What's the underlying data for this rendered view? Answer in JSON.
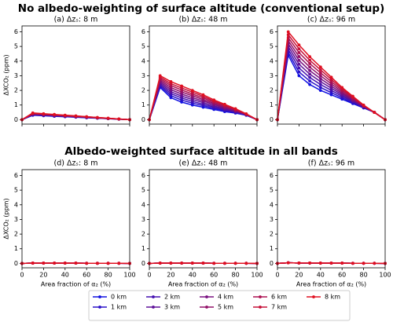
{
  "figure_titles": [
    "No albedo-weighting of surface altitude (conventional setup)",
    "Albedo-weighted surface altitude in all bands"
  ],
  "chart_data": [
    {
      "type": "line",
      "title": "(a) Δzₛ: 8 m",
      "ylabel": "ΔXCO₂ (ppm)",
      "x": [
        0,
        10,
        20,
        30,
        40,
        50,
        60,
        70,
        80,
        90,
        100
      ],
      "xlim": [
        0,
        100
      ],
      "xticks": [
        0,
        20,
        40,
        60,
        80,
        100
      ],
      "ylim": [
        -0.3,
        6.4
      ],
      "yticks": [
        0,
        1,
        2,
        3,
        4,
        5,
        6
      ],
      "series": [
        {
          "name": "0 km",
          "color": "#1010e0",
          "values": [
            0,
            0.3,
            0.27,
            0.23,
            0.2,
            0.17,
            0.13,
            0.1,
            0.07,
            0.03,
            0
          ]
        },
        {
          "name": "1 km",
          "color": "#2a10c8",
          "values": [
            0,
            0.32,
            0.28,
            0.25,
            0.21,
            0.18,
            0.14,
            0.11,
            0.07,
            0.04,
            0
          ]
        },
        {
          "name": "2 km",
          "color": "#4410b0",
          "values": [
            0,
            0.34,
            0.3,
            0.26,
            0.23,
            0.19,
            0.15,
            0.11,
            0.08,
            0.04,
            0
          ]
        },
        {
          "name": "3 km",
          "color": "#5e1098",
          "values": [
            0,
            0.36,
            0.32,
            0.28,
            0.24,
            0.2,
            0.16,
            0.12,
            0.08,
            0.04,
            0
          ]
        },
        {
          "name": "4 km",
          "color": "#781080",
          "values": [
            0,
            0.38,
            0.34,
            0.3,
            0.25,
            0.21,
            0.17,
            0.13,
            0.08,
            0.04,
            0
          ]
        },
        {
          "name": "5 km",
          "color": "#921068",
          "values": [
            0,
            0.4,
            0.36,
            0.31,
            0.27,
            0.22,
            0.18,
            0.13,
            0.09,
            0.04,
            0
          ]
        },
        {
          "name": "6 km",
          "color": "#ac1050",
          "values": [
            0,
            0.42,
            0.37,
            0.33,
            0.28,
            0.23,
            0.19,
            0.14,
            0.09,
            0.05,
            0
          ]
        },
        {
          "name": "7 km",
          "color": "#c61038",
          "values": [
            0,
            0.44,
            0.39,
            0.34,
            0.29,
            0.24,
            0.2,
            0.15,
            0.1,
            0.05,
            0
          ]
        },
        {
          "name": "8 km",
          "color": "#e01020",
          "values": [
            0,
            0.46,
            0.41,
            0.36,
            0.31,
            0.26,
            0.2,
            0.15,
            0.1,
            0.05,
            0
          ]
        }
      ]
    },
    {
      "type": "line",
      "title": "(b) Δzₛ: 48 m",
      "x": [
        0,
        10,
        20,
        30,
        40,
        50,
        60,
        70,
        80,
        90,
        100
      ],
      "xlim": [
        0,
        100
      ],
      "xticks": [
        0,
        20,
        40,
        60,
        80,
        100
      ],
      "ylim": [
        -0.3,
        6.4
      ],
      "yticks": [
        0,
        1,
        2,
        3,
        4,
        5,
        6
      ],
      "series": [
        {
          "color": "#1010e0",
          "values": [
            0,
            2.2,
            1.5,
            1.2,
            1.0,
            0.85,
            0.7,
            0.55,
            0.45,
            0.3,
            0
          ]
        },
        {
          "color": "#2a10c8",
          "values": [
            0,
            2.3,
            1.64,
            1.34,
            1.13,
            0.96,
            0.78,
            0.61,
            0.49,
            0.31,
            0
          ]
        },
        {
          "color": "#4410b0",
          "values": [
            0,
            2.4,
            1.78,
            1.48,
            1.25,
            1.06,
            0.86,
            0.68,
            0.53,
            0.33,
            0
          ]
        },
        {
          "color": "#5e1098",
          "values": [
            0,
            2.5,
            1.91,
            1.61,
            1.38,
            1.17,
            0.94,
            0.74,
            0.56,
            0.34,
            0
          ]
        },
        {
          "color": "#781080",
          "values": [
            0,
            2.6,
            2.05,
            1.75,
            1.5,
            1.28,
            1.03,
            0.8,
            0.6,
            0.35,
            0
          ]
        },
        {
          "color": "#921068",
          "values": [
            0,
            2.7,
            2.19,
            1.89,
            1.63,
            1.38,
            1.11,
            0.86,
            0.64,
            0.36,
            0
          ]
        },
        {
          "color": "#ac1050",
          "values": [
            0,
            2.8,
            2.33,
            2.03,
            1.75,
            1.49,
            1.19,
            0.93,
            0.68,
            0.38,
            0
          ]
        },
        {
          "color": "#c61038",
          "values": [
            0,
            2.9,
            2.46,
            2.16,
            1.88,
            1.59,
            1.27,
            0.99,
            0.71,
            0.39,
            0
          ]
        },
        {
          "color": "#e01020",
          "values": [
            0,
            3.0,
            2.6,
            2.3,
            2.0,
            1.7,
            1.35,
            1.05,
            0.75,
            0.4,
            0
          ]
        }
      ]
    },
    {
      "type": "line",
      "title": "(c) Δzₛ: 96 m",
      "x": [
        0,
        10,
        20,
        30,
        40,
        50,
        60,
        70,
        80,
        90,
        100
      ],
      "xlim": [
        0,
        100
      ],
      "xticks": [
        0,
        20,
        40,
        60,
        80,
        100
      ],
      "ylim": [
        -0.3,
        6.4
      ],
      "yticks": [
        0,
        1,
        2,
        3,
        4,
        5,
        6
      ],
      "series": [
        {
          "color": "#1010e0",
          "values": [
            0,
            4.4,
            3.0,
            2.4,
            2.0,
            1.7,
            1.4,
            1.1,
            0.8,
            0.5,
            0
          ]
        },
        {
          "color": "#2a10c8",
          "values": [
            0,
            4.6,
            3.26,
            2.64,
            2.2,
            1.85,
            1.5,
            1.16,
            0.83,
            0.5,
            0
          ]
        },
        {
          "color": "#4410b0",
          "values": [
            0,
            4.8,
            3.53,
            2.88,
            2.4,
            2.0,
            1.6,
            1.23,
            0.85,
            0.5,
            0
          ]
        },
        {
          "color": "#5e1098",
          "values": [
            0,
            5.0,
            3.79,
            3.11,
            2.6,
            2.15,
            1.7,
            1.29,
            0.88,
            0.5,
            0
          ]
        },
        {
          "color": "#781080",
          "values": [
            0,
            5.2,
            4.05,
            3.35,
            2.8,
            2.3,
            1.8,
            1.35,
            0.9,
            0.5,
            0
          ]
        },
        {
          "color": "#921068",
          "values": [
            0,
            5.4,
            4.31,
            3.59,
            3.0,
            2.45,
            1.9,
            1.41,
            0.93,
            0.5,
            0
          ]
        },
        {
          "color": "#ac1050",
          "values": [
            0,
            5.6,
            4.58,
            3.83,
            3.2,
            2.6,
            2.0,
            1.48,
            0.95,
            0.5,
            0
          ]
        },
        {
          "color": "#c61038",
          "values": [
            0,
            5.8,
            4.84,
            4.06,
            3.4,
            2.75,
            2.1,
            1.54,
            0.98,
            0.5,
            0
          ]
        },
        {
          "color": "#e01020",
          "values": [
            0,
            6.0,
            5.1,
            4.3,
            3.6,
            2.9,
            2.2,
            1.6,
            1.0,
            0.5,
            0
          ]
        }
      ]
    },
    {
      "type": "line",
      "title": "(d) Δzₛ: 8 m",
      "ylabel": "ΔXCO₂ (ppm)",
      "xlabel": "Area fraction of α₂ (%)",
      "x": [
        0,
        10,
        20,
        30,
        40,
        50,
        60,
        70,
        80,
        90,
        100
      ],
      "xlim": [
        0,
        100
      ],
      "xticks": [
        0,
        20,
        40,
        60,
        80,
        100
      ],
      "ylim": [
        -0.3,
        6.4
      ],
      "yticks": [
        0,
        1,
        2,
        3,
        4,
        5,
        6
      ],
      "series": [
        {
          "color": "#1010e0",
          "values": [
            0,
            0.02,
            0.02,
            0.02,
            0.02,
            0.02,
            0.01,
            0.01,
            0.01,
            0.01,
            0
          ]
        },
        {
          "color": "#2a10c8",
          "values": [
            0,
            0.02,
            0.02,
            0.02,
            0.02,
            0.02,
            0.01,
            0.01,
            0.01,
            0.01,
            0
          ]
        },
        {
          "color": "#4410b0",
          "values": [
            0,
            0.02,
            0.02,
            0.02,
            0.02,
            0.02,
            0.01,
            0.01,
            0.01,
            0.01,
            0
          ]
        },
        {
          "color": "#5e1098",
          "values": [
            0,
            0.02,
            0.02,
            0.02,
            0.02,
            0.02,
            0.01,
            0.01,
            0.01,
            0.01,
            0
          ]
        },
        {
          "color": "#781080",
          "values": [
            0,
            0.02,
            0.02,
            0.02,
            0.02,
            0.02,
            0.01,
            0.01,
            0.01,
            0.01,
            0
          ]
        },
        {
          "color": "#921068",
          "values": [
            0,
            0.02,
            0.02,
            0.02,
            0.02,
            0.02,
            0.01,
            0.01,
            0.01,
            0.01,
            0
          ]
        },
        {
          "color": "#ac1050",
          "values": [
            0,
            0.02,
            0.02,
            0.02,
            0.02,
            0.02,
            0.01,
            0.01,
            0.01,
            0.01,
            0
          ]
        },
        {
          "color": "#c61038",
          "values": [
            0,
            0.02,
            0.02,
            0.02,
            0.02,
            0.02,
            0.01,
            0.01,
            0.01,
            0.01,
            0
          ]
        },
        {
          "color": "#e01020",
          "values": [
            0,
            0.02,
            0.02,
            0.02,
            0.02,
            0.02,
            0.01,
            0.01,
            0.01,
            0.01,
            0
          ]
        }
      ]
    },
    {
      "type": "line",
      "title": "(e) Δzₛ: 48 m",
      "xlabel": "Area fraction of α₂ (%)",
      "x": [
        0,
        10,
        20,
        30,
        40,
        50,
        60,
        70,
        80,
        90,
        100
      ],
      "xlim": [
        0,
        100
      ],
      "xticks": [
        0,
        20,
        40,
        60,
        80,
        100
      ],
      "ylim": [
        -0.3,
        6.4
      ],
      "yticks": [
        0,
        1,
        2,
        3,
        4,
        5,
        6
      ],
      "series": [
        {
          "color": "#1010e0",
          "values": [
            0,
            0.02,
            0.02,
            0.02,
            0.02,
            0.02,
            0.01,
            0.01,
            0.01,
            0.01,
            0
          ]
        },
        {
          "color": "#2a10c8",
          "values": [
            0,
            0.02,
            0.02,
            0.02,
            0.02,
            0.02,
            0.01,
            0.01,
            0.01,
            0.01,
            0
          ]
        },
        {
          "color": "#4410b0",
          "values": [
            0,
            0.02,
            0.02,
            0.02,
            0.02,
            0.02,
            0.01,
            0.01,
            0.01,
            0.01,
            0
          ]
        },
        {
          "color": "#5e1098",
          "values": [
            0,
            0.02,
            0.02,
            0.02,
            0.02,
            0.02,
            0.01,
            0.01,
            0.01,
            0.01,
            0
          ]
        },
        {
          "color": "#781080",
          "values": [
            0,
            0.02,
            0.02,
            0.02,
            0.02,
            0.02,
            0.01,
            0.01,
            0.01,
            0.01,
            0
          ]
        },
        {
          "color": "#921068",
          "values": [
            0,
            0.02,
            0.02,
            0.02,
            0.02,
            0.02,
            0.01,
            0.01,
            0.01,
            0.01,
            0
          ]
        },
        {
          "color": "#ac1050",
          "values": [
            0,
            0.02,
            0.02,
            0.02,
            0.02,
            0.02,
            0.01,
            0.01,
            0.01,
            0.01,
            0
          ]
        },
        {
          "color": "#c61038",
          "values": [
            0,
            0.02,
            0.02,
            0.02,
            0.02,
            0.02,
            0.01,
            0.01,
            0.01,
            0.01,
            0
          ]
        },
        {
          "color": "#e01020",
          "values": [
            0,
            0.02,
            0.02,
            0.02,
            0.02,
            0.02,
            0.01,
            0.01,
            0.01,
            0.01,
            0
          ]
        }
      ]
    },
    {
      "type": "line",
      "title": "(f) Δzₛ: 96 m",
      "xlabel": "Area fraction of α₂ (%)",
      "x": [
        0,
        10,
        20,
        30,
        40,
        50,
        60,
        70,
        80,
        90,
        100
      ],
      "xlim": [
        0,
        100
      ],
      "xticks": [
        0,
        20,
        40,
        60,
        80,
        100
      ],
      "ylim": [
        -0.3,
        6.4
      ],
      "yticks": [
        0,
        1,
        2,
        3,
        4,
        5,
        6
      ],
      "series": [
        {
          "color": "#1010e0",
          "values": [
            0,
            0.04,
            0.03,
            0.03,
            0.02,
            0.02,
            0.02,
            0.01,
            0.01,
            0.01,
            0
          ]
        },
        {
          "color": "#2a10c8",
          "values": [
            0,
            0.04,
            0.03,
            0.03,
            0.02,
            0.02,
            0.02,
            0.01,
            0.01,
            0.01,
            0
          ]
        },
        {
          "color": "#4410b0",
          "values": [
            0,
            0.04,
            0.03,
            0.03,
            0.02,
            0.02,
            0.02,
            0.01,
            0.01,
            0.01,
            0
          ]
        },
        {
          "color": "#5e1098",
          "values": [
            0,
            0.04,
            0.03,
            0.03,
            0.02,
            0.02,
            0.02,
            0.01,
            0.01,
            0.01,
            0
          ]
        },
        {
          "color": "#781080",
          "values": [
            0,
            0.04,
            0.03,
            0.03,
            0.02,
            0.02,
            0.02,
            0.01,
            0.01,
            0.01,
            0
          ]
        },
        {
          "color": "#921068",
          "values": [
            0,
            0.04,
            0.03,
            0.03,
            0.02,
            0.02,
            0.02,
            0.01,
            0.01,
            0.01,
            0
          ]
        },
        {
          "color": "#ac1050",
          "values": [
            0,
            0.04,
            0.03,
            0.03,
            0.02,
            0.02,
            0.02,
            0.01,
            0.01,
            0.01,
            0
          ]
        },
        {
          "color": "#c61038",
          "values": [
            0,
            0.04,
            0.03,
            0.03,
            0.02,
            0.02,
            0.02,
            0.01,
            0.01,
            0.01,
            0
          ]
        },
        {
          "color": "#e01020",
          "values": [
            0,
            0.04,
            0.03,
            0.03,
            0.02,
            0.02,
            0.02,
            0.01,
            0.01,
            0.01,
            0
          ]
        }
      ]
    }
  ]
}
